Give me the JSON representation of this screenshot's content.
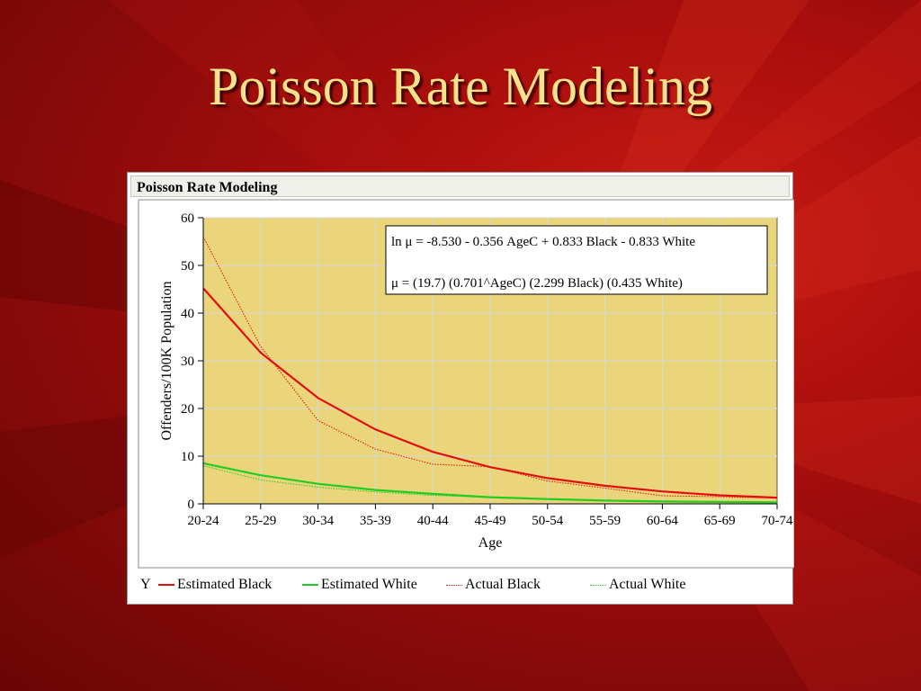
{
  "slide": {
    "title": "Poisson Rate Modeling"
  },
  "panel": {
    "header": "Poisson Rate Modeling"
  },
  "chart_data": {
    "type": "line",
    "xlabel": "Age",
    "ylabel": "Offenders/100K Population",
    "categories": [
      "20-24",
      "25-29",
      "30-34",
      "35-39",
      "40-44",
      "45-49",
      "50-54",
      "55-59",
      "60-64",
      "65-69",
      "70-74"
    ],
    "ylim": [
      0,
      60
    ],
    "yticks": [
      0,
      10,
      20,
      30,
      40,
      50,
      60
    ],
    "grid": true,
    "plot_background": "#ead57a",
    "annotation": [
      "ln μ = -8.530 - 0.356 AgeC + 0.833 Black - 0.833 White",
      "μ = (19.7) (0.701^AgeC) (2.299 Black) (0.435 White)"
    ],
    "legend": {
      "title": "Y",
      "placement": "bottom"
    },
    "series": [
      {
        "name": "Estimated Black",
        "color": "#e01010",
        "style": "solid",
        "values": [
          45.2,
          31.7,
          22.2,
          15.6,
          10.9,
          7.7,
          5.4,
          3.8,
          2.6,
          1.8,
          1.3
        ]
      },
      {
        "name": "Estimated White",
        "color": "#22cc22",
        "style": "solid",
        "values": [
          8.5,
          6.0,
          4.2,
          2.9,
          2.1,
          1.4,
          1.0,
          0.7,
          0.5,
          0.4,
          0.3
        ]
      },
      {
        "name": "Actual Black",
        "color": "#e01010",
        "style": "dotted",
        "values": [
          56.0,
          33.0,
          17.5,
          11.5,
          8.3,
          7.8,
          4.8,
          3.3,
          1.7,
          1.5,
          1.2
        ]
      },
      {
        "name": "Actual White",
        "color": "#22cc22",
        "style": "dotted",
        "values": [
          8.0,
          5.0,
          3.5,
          2.5,
          1.8,
          1.3,
          1.0,
          0.8,
          0.5,
          0.4,
          0.3
        ]
      }
    ]
  }
}
